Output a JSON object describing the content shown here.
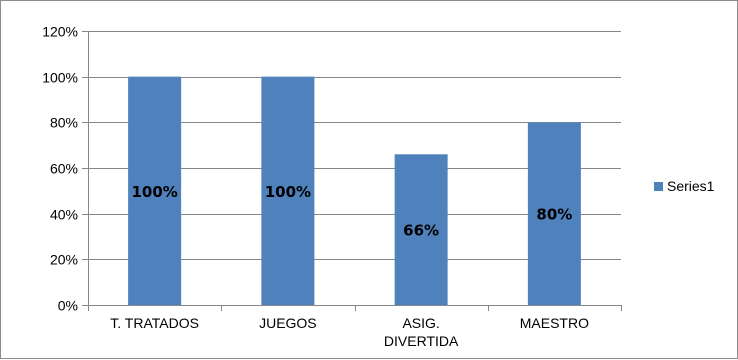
{
  "chart_data": {
    "type": "bar",
    "categories": [
      "T. TRATADOS",
      "JUEGOS",
      "ASIG. DIVERTIDA",
      "MAESTRO"
    ],
    "category_lines": [
      [
        "T. TRATADOS"
      ],
      [
        "JUEGOS"
      ],
      [
        "ASIG.",
        "DIVERTIDA"
      ],
      [
        "MAESTRO"
      ]
    ],
    "series": [
      {
        "name": "Series1",
        "values": [
          100,
          100,
          66,
          80
        ],
        "labels": [
          "100%",
          "100%",
          "66%",
          "80%"
        ],
        "color": "#4f81bd"
      }
    ],
    "y_ticks": [
      "0%",
      "20%",
      "40%",
      "60%",
      "80%",
      "100%",
      "120%"
    ],
    "ylim": [
      0,
      120
    ],
    "y_unit": "%",
    "grid": true,
    "legend_position": "right"
  }
}
